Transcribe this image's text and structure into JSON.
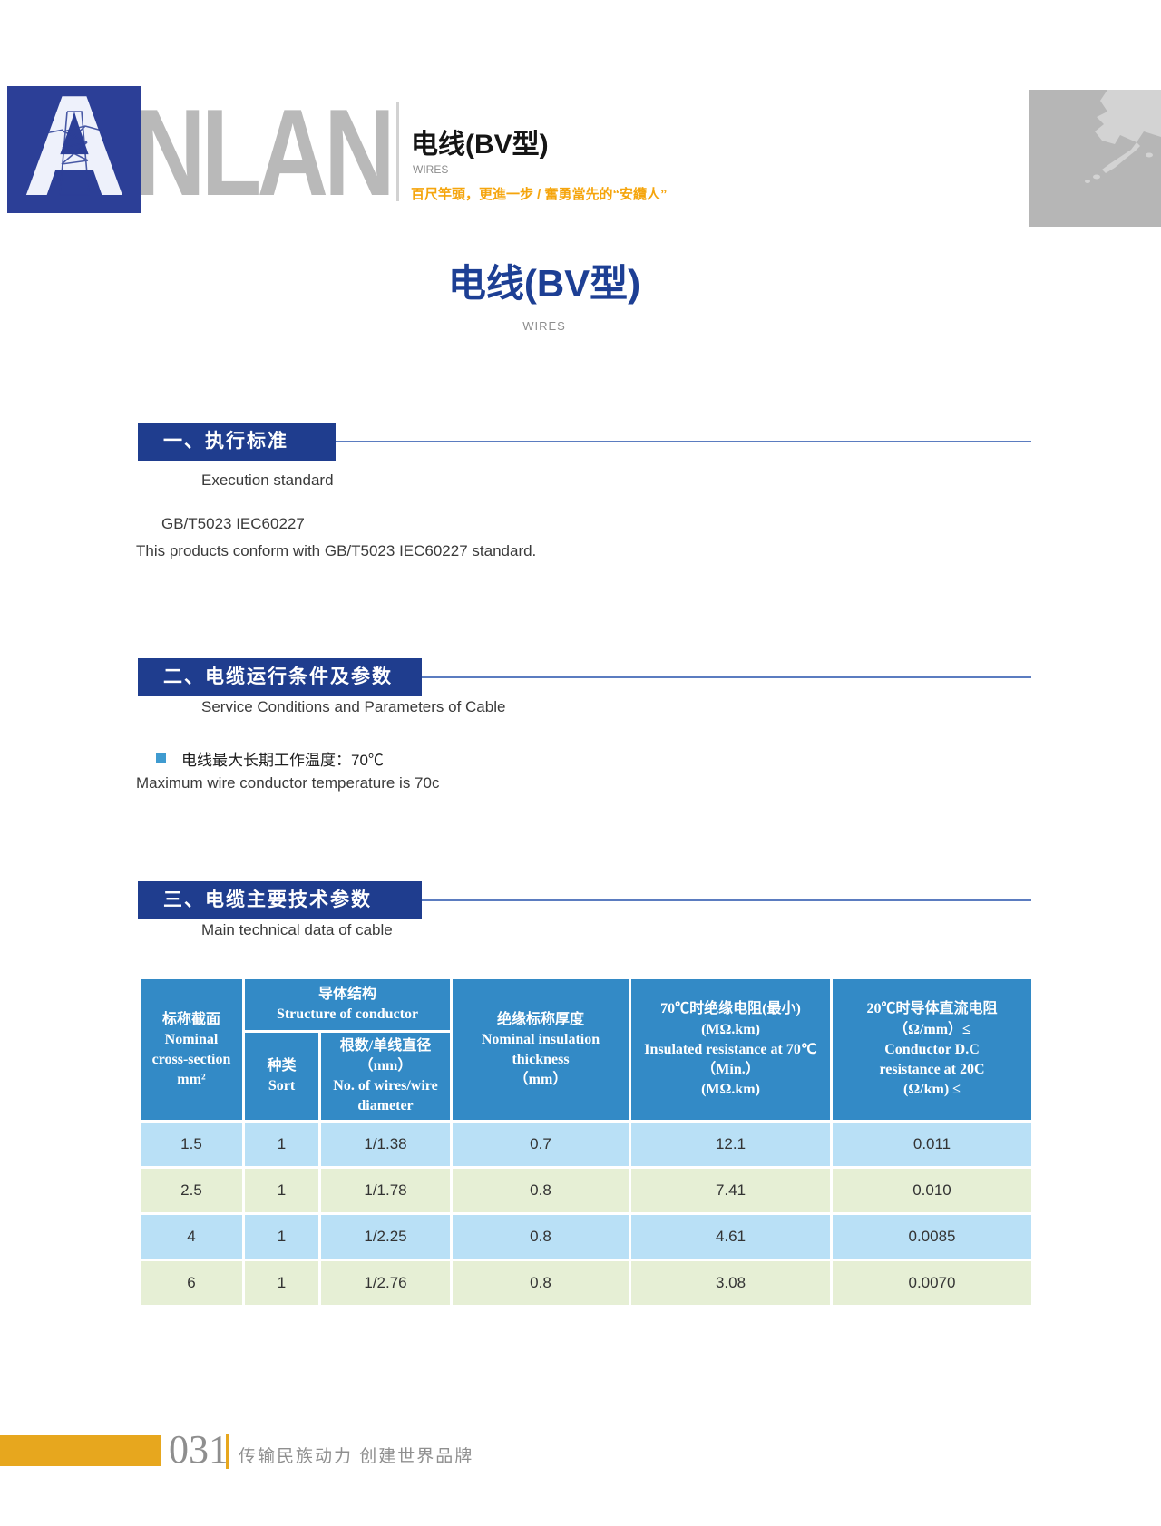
{
  "colors": {
    "brand_navy": "#2c3f97",
    "section_box_navy": "#1f3d8e",
    "section_line_blue": "#5b7cc0",
    "table_header_blue": "#338ac6",
    "row_light_blue": "#b9e0f6",
    "row_light_green": "#e6efd5",
    "accent_gold": "#e7a71e",
    "tagline_orange": "#f5a50d"
  },
  "header": {
    "logo": {
      "letter_a": "A",
      "letters_rest": "NLAN"
    },
    "product_title_cn": "电线(BV型)",
    "product_title_en": "WIRES",
    "tagline": "百尺竿頭，更進一步 / 奮勇當先的“安纜人”"
  },
  "title": {
    "cn": "电线(BV型)",
    "en": "WIRES"
  },
  "sections": {
    "s1": {
      "label": "一、执行标准",
      "subtitle": "Execution standard",
      "line1": "GB/T5023  IEC60227",
      "line2": "This products conform with GB/T5023  IEC60227 standard."
    },
    "s2": {
      "label": "二、电缆运行条件及参数",
      "subtitle": "Service Conditions and Parameters of Cable",
      "bullet_cn": "电线最大长期工作温度：70℃",
      "bullet_en": "Maximum wire conductor temperature is 70c"
    },
    "s3": {
      "label": "三、电缆主要技术参数",
      "subtitle": "Main technical data of cable"
    }
  },
  "table": {
    "columns": [
      {
        "id": "nominal",
        "lines": [
          "标称截面",
          "Nominal",
          "cross-section",
          "mm²"
        ]
      },
      {
        "id": "structure",
        "lines": [
          "导体结构",
          "Structure of conductor"
        ],
        "sub": [
          {
            "id": "sort",
            "lines": [
              "种类",
              "Sort"
            ]
          },
          {
            "id": "wires",
            "lines": [
              "根数/单线直径",
              "（mm）",
              "No. of wires/wire",
              "diameter"
            ]
          }
        ]
      },
      {
        "id": "thickness",
        "lines": [
          "绝缘标称厚度",
          "Nominal insulation",
          "thickness",
          "（mm）"
        ]
      },
      {
        "id": "resistance70",
        "lines": [
          "70℃时绝缘电阻(最小)",
          "(MΩ.km)",
          "Insulated resistance at 70℃",
          "（Min.）",
          "(MΩ.km)"
        ]
      },
      {
        "id": "resistance20",
        "lines": [
          "20℃时导体直流电阻",
          "（Ω/mm）≤",
          "Conductor D.C",
          "resistance at 20C",
          "(Ω/km) ≤"
        ]
      }
    ],
    "rows": [
      [
        "1.5",
        "1",
        "1/1.38",
        "0.7",
        "12.1",
        "0.011"
      ],
      [
        "2.5",
        "1",
        "1/1.78",
        "0.8",
        "7.41",
        "0.010"
      ],
      [
        "4",
        "1",
        "1/2.25",
        "0.8",
        "4.61",
        "0.0085"
      ],
      [
        "6",
        "1",
        "1/2.76",
        "0.8",
        "3.08",
        "0.0070"
      ]
    ]
  },
  "footer": {
    "page_number": "031",
    "slogan": "传输民族动力  创建世界品牌"
  }
}
